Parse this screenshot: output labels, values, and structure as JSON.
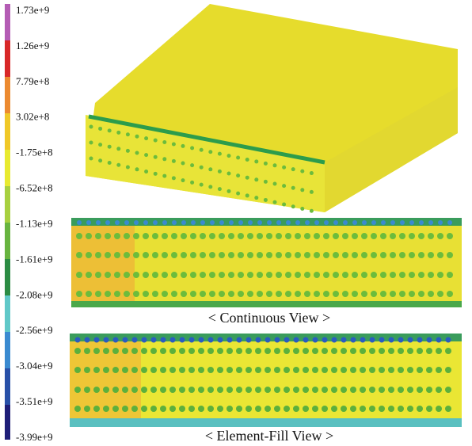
{
  "legend": {
    "labels": [
      "1.73e+9",
      "1.26e+9",
      "7.79e+8",
      "3.02e+8",
      "-1.75e+8",
      "-6.52e+8",
      "-1.13e+9",
      "-1.61e+9",
      "-2.08e+9",
      "-2.56e+9",
      "-3.04e+9",
      "-3.51e+9",
      "-3.99e+9"
    ]
  },
  "captions": {
    "continuous": "< Continuous View >",
    "element_fill": "< Element-Fill View >"
  }
}
